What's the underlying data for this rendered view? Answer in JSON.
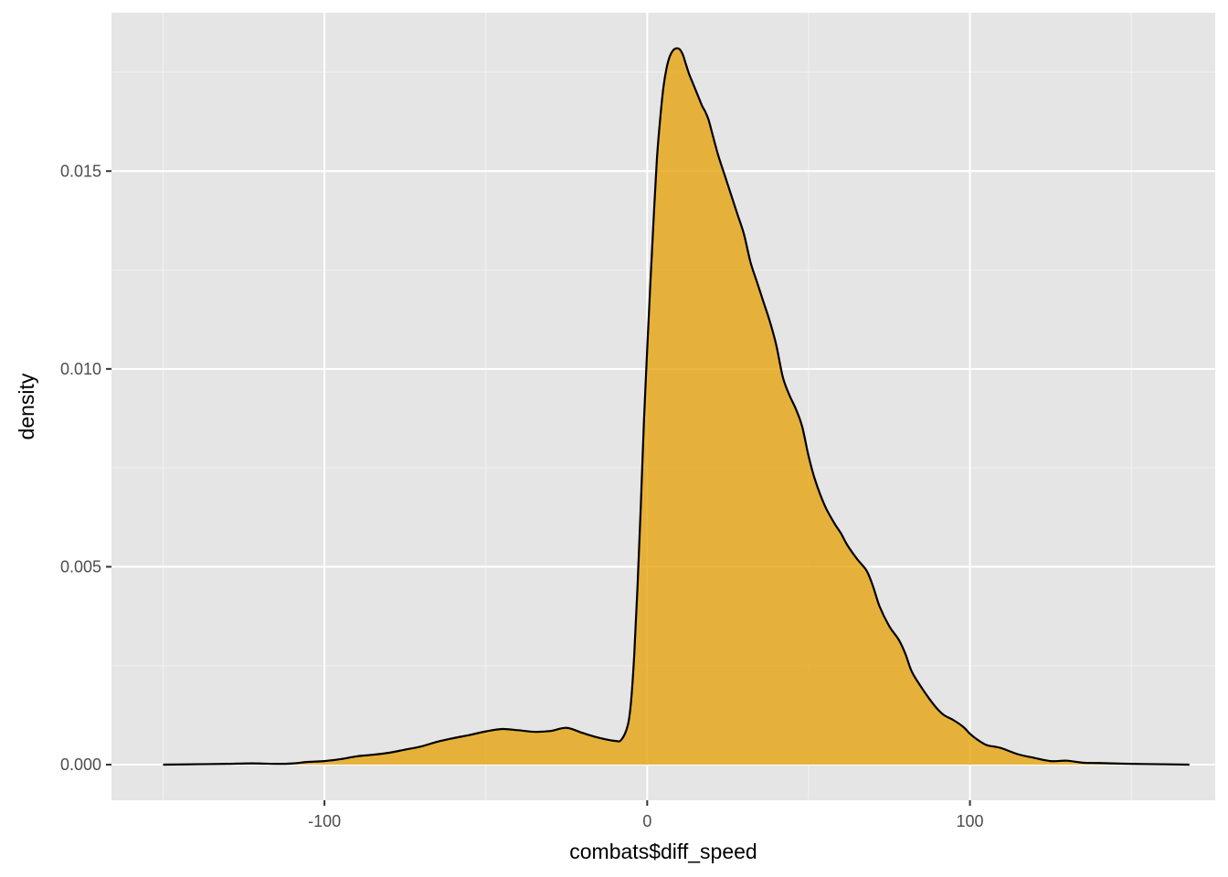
{
  "chart_data": {
    "type": "area",
    "title": "",
    "xlabel": "combats$diff_speed",
    "ylabel": "density",
    "xlim": [
      -166,
      176
    ],
    "ylim": [
      -0.0009,
      0.019
    ],
    "x_ticks": [
      -100,
      0,
      100
    ],
    "x_tick_labels": [
      "-100",
      "0",
      "100"
    ],
    "y_ticks": [
      0.0,
      0.005,
      0.01,
      0.015
    ],
    "y_tick_labels": [
      "0.000",
      "0.005",
      "0.010",
      "0.015"
    ],
    "grid": true,
    "legend": "none",
    "fill_color": "#E69F00",
    "fill_opacity": 0.75,
    "line_color": "#000000",
    "panel_background": "#e5e5e5",
    "series": [
      {
        "x": [
          -150,
          -140,
          -130,
          -125,
          -120,
          -115,
          -110,
          -105,
          -100,
          -95,
          -90,
          -85,
          -80,
          -75,
          -70,
          -65,
          -60,
          -55,
          -50,
          -45,
          -40,
          -35,
          -30,
          -25,
          -20,
          -15,
          -10,
          -8,
          -6,
          -5,
          -4,
          -3,
          -2,
          -1,
          0,
          1,
          2,
          3,
          4,
          5,
          6,
          7,
          8,
          9,
          10,
          11,
          12,
          13,
          14,
          15,
          16,
          17,
          18,
          19,
          20,
          22,
          24,
          26,
          28,
          30,
          32,
          34,
          36,
          38,
          40,
          42,
          44,
          46,
          48,
          50,
          52,
          55,
          58,
          60,
          62,
          65,
          68,
          70,
          72,
          75,
          78,
          80,
          82,
          85,
          88,
          90,
          92,
          95,
          98,
          100,
          102,
          105,
          108,
          110,
          115,
          120,
          125,
          130,
          135,
          140,
          150,
          160,
          168
        ],
        "y": [
          0.0,
          1e-05,
          2e-05,
          3e-05,
          3e-05,
          2e-05,
          3e-05,
          7e-05,
          9e-05,
          0.00014,
          0.00021,
          0.00025,
          0.0003,
          0.00038,
          0.00046,
          0.00058,
          0.00067,
          0.00075,
          0.00084,
          0.0009,
          0.00087,
          0.00083,
          0.00085,
          0.00093,
          0.0008,
          0.00068,
          0.0006,
          0.00063,
          0.001,
          0.0016,
          0.0028,
          0.0045,
          0.0065,
          0.0087,
          0.0105,
          0.0122,
          0.0138,
          0.0153,
          0.0163,
          0.0171,
          0.0176,
          0.0179,
          0.01805,
          0.0181,
          0.01808,
          0.01795,
          0.0177,
          0.01745,
          0.01725,
          0.01705,
          0.01685,
          0.01665,
          0.0165,
          0.0163,
          0.016,
          0.0154,
          0.0149,
          0.0144,
          0.0139,
          0.0134,
          0.0127,
          0.0122,
          0.0117,
          0.0112,
          0.0106,
          0.0098,
          0.00935,
          0.009,
          0.00855,
          0.0078,
          0.0072,
          0.00655,
          0.0061,
          0.00585,
          0.00555,
          0.0052,
          0.0049,
          0.0045,
          0.004,
          0.0035,
          0.00315,
          0.0028,
          0.00235,
          0.00195,
          0.0016,
          0.0014,
          0.00125,
          0.00112,
          0.00095,
          0.00078,
          0.00065,
          0.0005,
          0.00045,
          0.00041,
          0.00026,
          0.00017,
          9e-05,
          0.0001,
          5e-05,
          4e-05,
          2e-05,
          1e-05,
          0.0
        ]
      }
    ]
  }
}
